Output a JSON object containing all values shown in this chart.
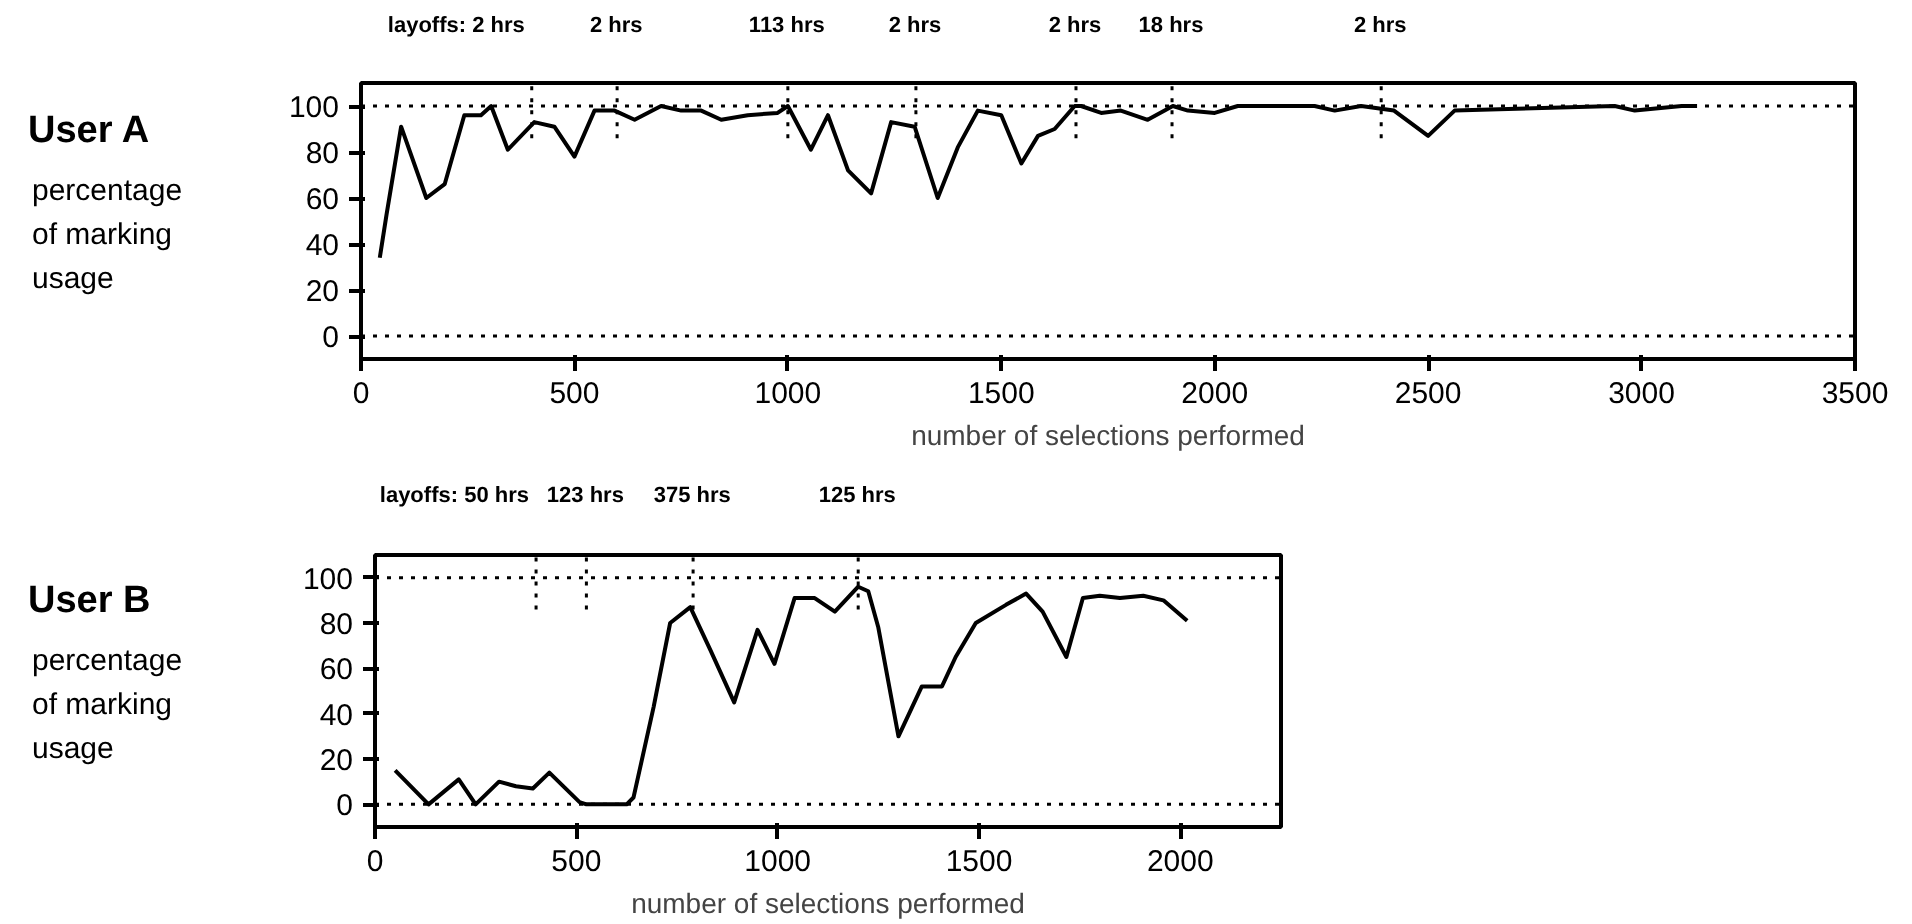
{
  "chart_data": [
    {
      "type": "line",
      "title": "User A",
      "ylabel": "percentage\nof marking\nusage",
      "xlabel": "number of selections performed",
      "xlim": [
        0,
        3500
      ],
      "xticks": [
        0,
        500,
        1000,
        1500,
        2000,
        2500,
        3000,
        3500
      ],
      "ylim": [
        -10,
        110
      ],
      "yticks": [
        0,
        20,
        40,
        60,
        80,
        100
      ],
      "grid": false,
      "marker": "none",
      "line_style": "solid",
      "series": [
        {
          "color": "#000000",
          "x": [
            44,
            60,
            94,
            153,
            196,
            242,
            281,
            305,
            344,
            406,
            453,
            500,
            547,
            594,
            641,
            703,
            750,
            797,
            844,
            906,
            976,
            1000,
            1054,
            1094,
            1141,
            1195,
            1242,
            1297,
            1351,
            1398,
            1445,
            1500,
            1547,
            1586,
            1625,
            1672,
            1687,
            1734,
            1780,
            1843,
            1902,
            1937,
            2000,
            2054,
            2234,
            2281,
            2343,
            2420,
            2500,
            2562,
            2937,
            2984,
            3094,
            3130
          ],
          "values": [
            34,
            53,
            91,
            60,
            66,
            96,
            96,
            100,
            81,
            93,
            91,
            78,
            98,
            98,
            94,
            100,
            98,
            98,
            94,
            96,
            97,
            100,
            81,
            96,
            72,
            62,
            93,
            91,
            60,
            82,
            98,
            96,
            75,
            87,
            90,
            100,
            100,
            97,
            98,
            94,
            100,
            98,
            97,
            100,
            100,
            98,
            100,
            98,
            87,
            98,
            100,
            98,
            100,
            100
          ]
        }
      ],
      "ref_lines": [
        {
          "axis": "y",
          "value": 0,
          "line_style": "dotted"
        },
        {
          "axis": "y",
          "value": 100,
          "line_style": "dotted"
        },
        {
          "axis": "x",
          "value": 400,
          "label": "2 hrs",
          "line_style": "dotted"
        },
        {
          "axis": "x",
          "value": 600,
          "label": "2 hrs",
          "line_style": "dotted"
        },
        {
          "axis": "x",
          "value": 1000,
          "label": "113 hrs",
          "line_style": "dotted"
        },
        {
          "axis": "x",
          "value": 1300,
          "label": "2 hrs",
          "line_style": "dotted"
        },
        {
          "axis": "x",
          "value": 1675,
          "label": "2 hrs",
          "line_style": "dotted"
        },
        {
          "axis": "x",
          "value": 1900,
          "label": "18 hrs",
          "line_style": "dotted"
        },
        {
          "axis": "x",
          "value": 2390,
          "label": "2 hrs",
          "line_style": "dotted"
        }
      ],
      "annotations": [
        "layoffs:"
      ]
    },
    {
      "type": "line",
      "title": "User B",
      "ylabel": "percentage\nof marking\nusage",
      "xlabel": "number of selections performed",
      "xlim": [
        0,
        2250
      ],
      "xticks": [
        0,
        500,
        1000,
        1500,
        2000
      ],
      "ylim": [
        -10,
        110
      ],
      "yticks": [
        0,
        20,
        40,
        60,
        80,
        100
      ],
      "grid": false,
      "marker": "none",
      "line_style": "solid",
      "series": [
        {
          "color": "#000000",
          "x": [
            50,
            133,
            208,
            250,
            308,
            350,
            392,
            433,
            508,
            525,
            625,
            642,
            692,
            733,
            783,
            833,
            892,
            950,
            992,
            1042,
            1092,
            1142,
            1200,
            1225,
            1250,
            1300,
            1358,
            1408,
            1442,
            1492,
            1567,
            1617,
            1658,
            1717,
            1758,
            1800,
            1850,
            1908,
            1958,
            2017
          ],
          "values": [
            15,
            0,
            11,
            0,
            10,
            8,
            7,
            14,
            1,
            0,
            0,
            3,
            43,
            80,
            87,
            68,
            45,
            77,
            62,
            91,
            91,
            85,
            96,
            94,
            78,
            30,
            52,
            52,
            65,
            80,
            88,
            93,
            85,
            65,
            91,
            92,
            91,
            92,
            90,
            81
          ]
        }
      ],
      "ref_lines": [
        {
          "axis": "y",
          "value": 0,
          "line_style": "dotted"
        },
        {
          "axis": "y",
          "value": 100,
          "line_style": "dotted"
        },
        {
          "axis": "x",
          "value": 400,
          "label": "50 hrs",
          "line_style": "dotted"
        },
        {
          "axis": "x",
          "value": 525,
          "label": "123 hrs",
          "line_style": "dotted"
        },
        {
          "axis": "x",
          "value": 790,
          "label": "375 hrs",
          "line_style": "dotted"
        },
        {
          "axis": "x",
          "value": 1200,
          "label": "125 hrs",
          "line_style": "dotted"
        }
      ],
      "annotations": [
        "layoffs:"
      ]
    }
  ]
}
